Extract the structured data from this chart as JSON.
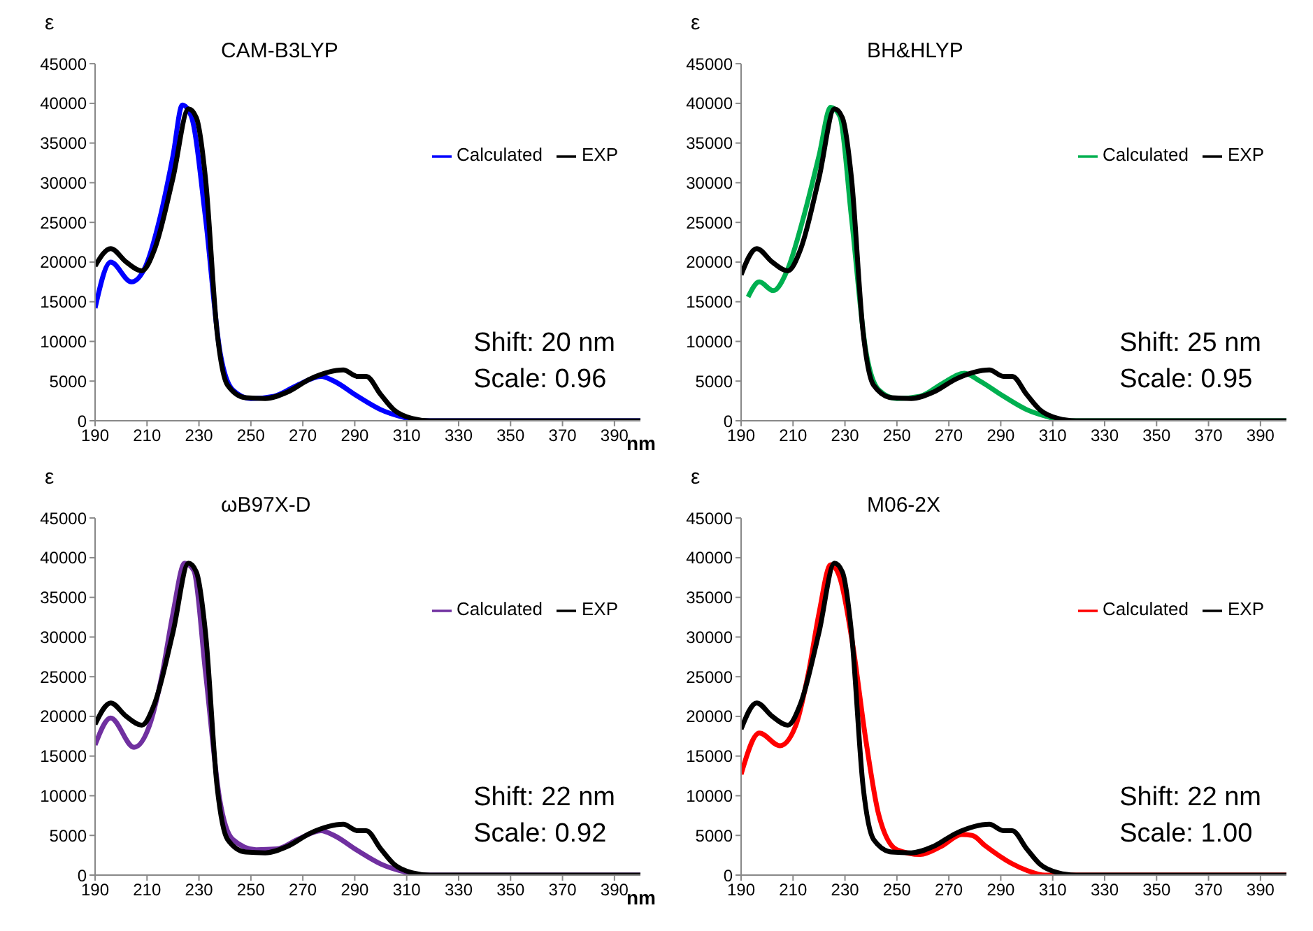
{
  "chart_data": [
    {
      "type": "line",
      "title": "CAM-B3LYP",
      "ylabel": "ε",
      "xlim": [
        190,
        400
      ],
      "ylim": [
        0,
        45000
      ],
      "xticks": [
        190,
        210,
        230,
        250,
        270,
        290,
        310,
        330,
        350,
        370,
        390
      ],
      "yticks": [
        0,
        5000,
        10000,
        15000,
        20000,
        25000,
        30000,
        35000,
        40000,
        45000
      ],
      "legend": "top right",
      "marker": "none",
      "annotations": [
        "Shift: 20 nm",
        "Scale: 0.96"
      ],
      "series": [
        {
          "name": "Calculated",
          "color": "#0000ff",
          "x": [
            190,
            196,
            204,
            209.5,
            215,
            220,
            223.6,
            227,
            232.5,
            238,
            243,
            250,
            259,
            268,
            277,
            282,
            291,
            300,
            308.6,
            316,
            400
          ],
          "values": [
            14200,
            20000,
            17500,
            19500,
            25600,
            33400,
            39800,
            38400,
            25600,
            8900,
            3900,
            2800,
            3100,
            4500,
            5600,
            5000,
            3100,
            1400,
            450,
            0,
            0
          ]
        },
        {
          "name": "EXP",
          "color": "#000000",
          "x": [
            190,
            196,
            202,
            208,
            213,
            220,
            226,
            229,
            232.5,
            237,
            241,
            248,
            255.5,
            264,
            273,
            285.6,
            291,
            294.4,
            300,
            305,
            312,
            319,
            400
          ],
          "values": [
            19500,
            21700,
            20000,
            18900,
            21700,
            30600,
            39300,
            38200,
            30600,
            11100,
            4500,
            2900,
            2800,
            3600,
            5300,
            6400,
            5600,
            5600,
            3300,
            1400,
            300,
            0,
            0
          ]
        }
      ]
    },
    {
      "type": "line",
      "title": "BH&HLYP",
      "ylabel": "ε",
      "xlabel": "nm",
      "xlim": [
        190,
        400
      ],
      "ylim": [
        0,
        45000
      ],
      "xticks": [
        190,
        210,
        230,
        250,
        270,
        290,
        310,
        330,
        350,
        370,
        390
      ],
      "yticks": [
        0,
        5000,
        10000,
        15000,
        20000,
        25000,
        30000,
        35000,
        40000,
        45000
      ],
      "legend": "top right",
      "marker": "none",
      "annotations": [
        "Shift: 25 nm",
        "Scale: 0.95"
      ],
      "series": [
        {
          "name": "Calculated",
          "color": "#00b050",
          "x": [
            192.7,
            197,
            202.4,
            207.7,
            214,
            220,
            224.5,
            228,
            232.5,
            238,
            243,
            250,
            259,
            268,
            276,
            282,
            291,
            300,
            308.6,
            314,
            400
          ],
          "values": [
            15600,
            17500,
            16400,
            18900,
            25600,
            33400,
            39500,
            38400,
            25600,
            8900,
            3900,
            2800,
            3100,
            4800,
            6000,
            5000,
            3100,
            1400,
            450,
            0,
            0
          ]
        },
        {
          "name": "EXP",
          "color": "#000000",
          "x": [
            190,
            196,
            202,
            208,
            213,
            220,
            226,
            229,
            232.5,
            237,
            241,
            248,
            255.5,
            264,
            273,
            285.6,
            291,
            294.4,
            300,
            305,
            312,
            319,
            400
          ],
          "values": [
            18400,
            21700,
            20000,
            18900,
            21700,
            30600,
            39300,
            38200,
            30600,
            11100,
            4500,
            2900,
            2800,
            3600,
            5300,
            6400,
            5600,
            5600,
            3300,
            1400,
            300,
            0,
            0
          ]
        }
      ]
    },
    {
      "type": "line",
      "title": "ωB97X-D",
      "ylabel": "ε",
      "xlim": [
        190,
        400
      ],
      "ylim": [
        0,
        45000
      ],
      "xticks": [
        190,
        210,
        230,
        250,
        270,
        290,
        310,
        330,
        350,
        370,
        390
      ],
      "yticks": [
        0,
        5000,
        10000,
        15000,
        20000,
        25000,
        30000,
        35000,
        40000,
        45000
      ],
      "legend": "top right",
      "marker": "none",
      "annotations": [
        "Shift: 22 nm",
        "Scale: 0.92"
      ],
      "series": [
        {
          "name": "Calculated",
          "color": "#7030a0",
          "x": [
            190,
            196,
            205,
            211,
            216,
            220,
            224.5,
            228,
            232.5,
            238,
            243,
            252,
            260,
            268,
            277,
            282,
            291,
            300,
            308.6,
            316,
            400
          ],
          "values": [
            16400,
            19800,
            16100,
            18900,
            25600,
            33000,
            39300,
            38400,
            25600,
            9500,
            4500,
            3200,
            3300,
            4500,
            5600,
            5000,
            3100,
            1400,
            450,
            0,
            0
          ]
        },
        {
          "name": "EXP",
          "color": "#000000",
          "x": [
            190,
            196,
            202,
            208,
            213,
            220,
            226,
            229,
            232.5,
            237,
            241,
            248,
            255.5,
            264,
            273,
            285.6,
            291,
            294.4,
            300,
            305,
            312,
            319,
            400
          ],
          "values": [
            19000,
            21700,
            20000,
            18900,
            21700,
            30600,
            39300,
            38200,
            30600,
            11100,
            4500,
            2900,
            2800,
            3600,
            5300,
            6400,
            5600,
            5600,
            3300,
            1400,
            300,
            0,
            0
          ]
        }
      ]
    },
    {
      "type": "line",
      "title": "M06-2X",
      "ylabel": "ε",
      "xlabel": "nm",
      "xlim": [
        190,
        400
      ],
      "ylim": [
        0,
        45000
      ],
      "xticks": [
        190,
        210,
        230,
        250,
        270,
        290,
        310,
        330,
        350,
        370,
        390
      ],
      "yticks": [
        0,
        5000,
        10000,
        15000,
        20000,
        25000,
        30000,
        35000,
        40000,
        45000
      ],
      "legend": "top right",
      "marker": "none",
      "annotations": [
        "Shift: 22 nm",
        "Scale: 1.00"
      ],
      "series": [
        {
          "name": "Calculated",
          "color": "#ff0000",
          "x": [
            190,
            197,
            205,
            211,
            216,
            220,
            224.5,
            228,
            233,
            238,
            243,
            250,
            259,
            267,
            275,
            279,
            284,
            294,
            300,
            307,
            400
          ],
          "values": [
            12700,
            17900,
            16300,
            18800,
            25600,
            33000,
            39100,
            37500,
            29000,
            17100,
            7600,
            3200,
            2600,
            3600,
            5100,
            5000,
            3700,
            1500,
            600,
            0,
            0
          ]
        },
        {
          "name": "EXP",
          "color": "#000000",
          "x": [
            190,
            196,
            202,
            208,
            213,
            220,
            226,
            229,
            232.5,
            237,
            241,
            248,
            255.5,
            264,
            273,
            285.6,
            291,
            294.4,
            300,
            305,
            312,
            319,
            400
          ],
          "values": [
            18400,
            21700,
            20000,
            18900,
            21700,
            30600,
            39300,
            38200,
            30600,
            11100,
            4500,
            2900,
            2800,
            3600,
            5300,
            6400,
            5600,
            5600,
            3300,
            1400,
            300,
            0,
            0
          ]
        }
      ]
    }
  ]
}
